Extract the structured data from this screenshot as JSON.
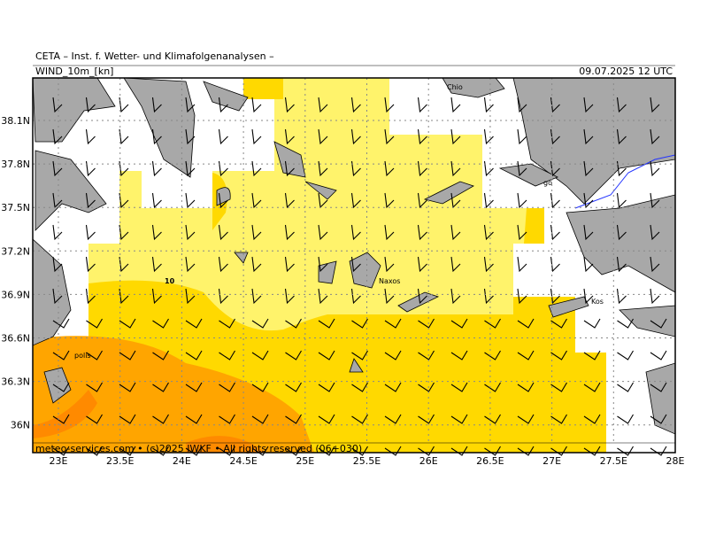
{
  "header": {
    "title": "CETA – Inst. f. Wetter- und Klimafolgenanalysen –",
    "field": "WIND_10m_[kn]",
    "valid_time": "09.07.2025 12 UTC"
  },
  "axes": {
    "latitudes": [
      "38.1N",
      "37.8N",
      "37.5N",
      "37.2N",
      "36.9N",
      "36.6N",
      "36.3N",
      "36N"
    ],
    "longitudes": [
      "23E",
      "23.5E",
      "24E",
      "24.5E",
      "25E",
      "25.5E",
      "26E",
      "26.5E",
      "27E",
      "27.5E",
      "28E"
    ]
  },
  "map_labels": {
    "contour": "10",
    "places": [
      "Chio",
      "go",
      "Naxos",
      "Kos",
      "polis"
    ]
  },
  "footer": "meteo-services.com • (c)2025 IWKF • All rights reserved (06+030)"
}
